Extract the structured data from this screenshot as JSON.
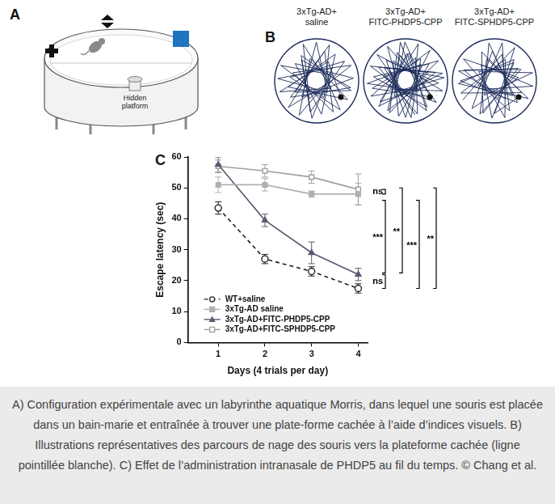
{
  "figure": {
    "panel_labels": [
      "A",
      "B",
      "C"
    ],
    "panel_a": {
      "platform_label": [
        "Hidden",
        "platform"
      ]
    },
    "panel_b": {
      "titles": [
        [
          "3xTg-AD+",
          "saline"
        ],
        [
          "3xTg-AD+",
          "FITC-PHDP5-CPP"
        ],
        [
          "3xTg-AD+",
          "FITC-SPHDP5-CPP"
        ]
      ]
    },
    "caption": "A) Configuration expérimentale avec un labyrinthe aquatique Morris, dans lequel une souris est placée dans un bain-marie et entraînée à trouver une plate-forme cachée à l’aide d’indices visuels. B) Illustrations représentatives des parcours de nage des souris vers la plateforme cachée (ligne pointillée blanche). C) Effet de l’administration intranasale de PHDP5 au fil du temps. © Chang et al."
  },
  "chart_data": {
    "type": "line",
    "x_label": "Days (4 trials per day)",
    "y_label": "Escape latency (sec)",
    "x": [
      1,
      2,
      3,
      4
    ],
    "xlim": [
      0.35,
      4.2
    ],
    "xticks": [
      1,
      2,
      3,
      4
    ],
    "ylim": [
      0,
      60
    ],
    "yticks": [
      0,
      10,
      20,
      30,
      40,
      50,
      60
    ],
    "grid": false,
    "legend": "lower left",
    "series": [
      {
        "name": "WT+saline",
        "color": "#222222",
        "marker": "circle-open",
        "line_style": "dashed",
        "values": [
          43.5,
          27,
          23,
          17.5
        ],
        "errors": [
          2,
          1.5,
          1.5,
          1.5
        ]
      },
      {
        "name": "3xTg-AD saline",
        "color": "#b0b0b0",
        "marker": "square",
        "line_style": "solid",
        "values": [
          51,
          51,
          48,
          48
        ],
        "errors": [
          2.5,
          2,
          1,
          3.5
        ]
      },
      {
        "name": "3xTg-AD+FITC-PHDP5-CPP",
        "color": "#5b5870",
        "marker": "triangle",
        "line_style": "solid",
        "values": [
          57.5,
          39.5,
          29,
          22
        ],
        "errors": [
          2.5,
          2,
          3.5,
          2
        ]
      },
      {
        "name": "3xTg-AD+FITC-SPHDP5-CPP",
        "color": "#a0a0a0",
        "marker": "square-open",
        "line_style": "solid",
        "values": [
          57,
          55.5,
          53.5,
          49.5
        ],
        "errors": [
          2,
          2,
          2,
          5
        ]
      }
    ],
    "annotations": [
      {
        "text": "ns",
        "span": [
          49.5,
          48
        ]
      },
      {
        "text": "***",
        "span": [
          46,
          22.5
        ]
      },
      {
        "text": "ns",
        "span": [
          22,
          17.5
        ]
      },
      {
        "text": "**",
        "span": [
          50,
          22.5
        ]
      },
      {
        "text": "***",
        "span": [
          46,
          17.5
        ]
      },
      {
        "text": "**",
        "span": [
          50,
          17.5
        ]
      }
    ]
  }
}
